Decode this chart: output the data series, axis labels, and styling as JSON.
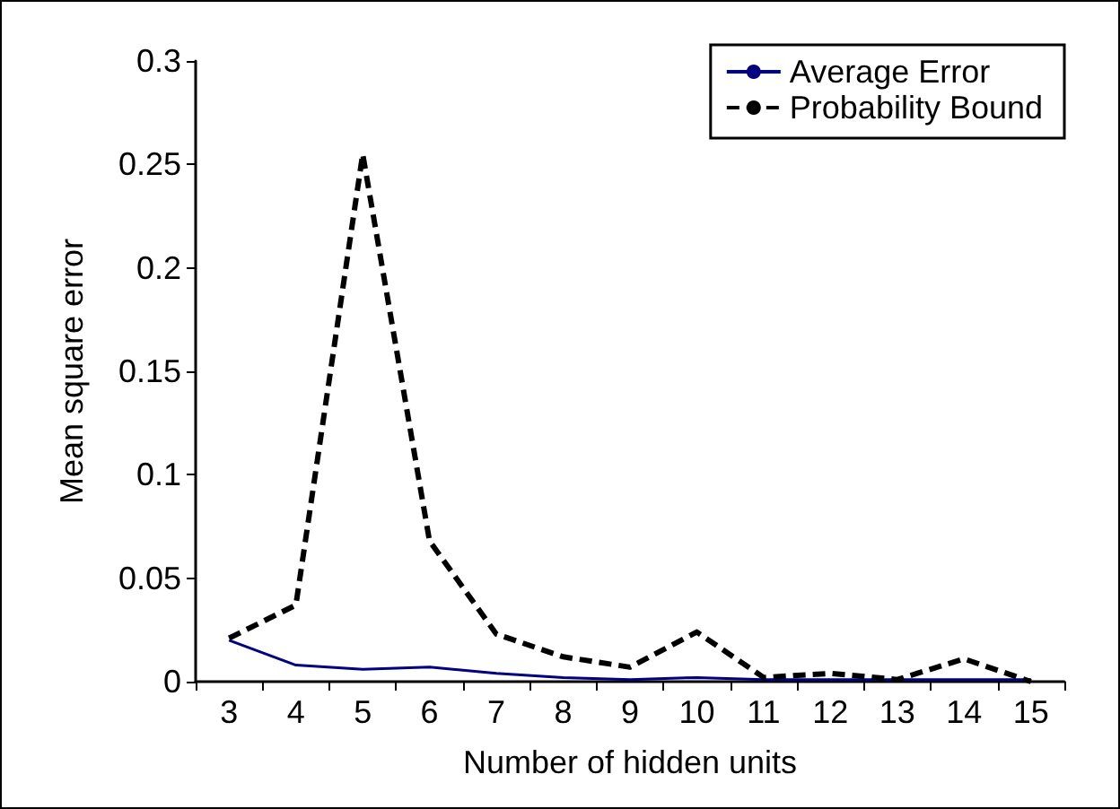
{
  "chart_data": {
    "type": "line",
    "xlabel": "Number of hidden units",
    "ylabel": "Mean square error",
    "categories": [
      "3",
      "4",
      "5",
      "6",
      "7",
      "8",
      "9",
      "10",
      "11",
      "12",
      "13",
      "14",
      "15"
    ],
    "series": [
      {
        "name": "Average Error",
        "color": "#000080",
        "line_style": "solid",
        "values": [
          0.02,
          0.008,
          0.006,
          0.007,
          0.004,
          0.002,
          0.001,
          0.002,
          0.001,
          0.001,
          0.001,
          0.001,
          0.001
        ]
      },
      {
        "name": "Probability Bound",
        "color": "#000000",
        "line_style": "dashed",
        "values": [
          0.021,
          0.037,
          0.255,
          0.068,
          0.023,
          0.012,
          0.007,
          0.024,
          0.002,
          0.004,
          0.001,
          0.011,
          0
        ]
      }
    ],
    "ylim": [
      0,
      0.3
    ],
    "yticks": [
      0,
      0.05,
      0.1,
      0.15,
      0.2,
      0.25,
      0.3
    ],
    "grid": false,
    "legend": "top right",
    "marker": "none"
  }
}
